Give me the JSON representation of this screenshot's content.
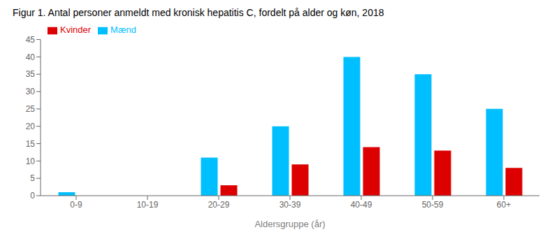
{
  "chart_data": {
    "type": "bar",
    "title": "Figur 1. Antal personer anmeldt med kronisk hepatitis C, fordelt på alder og køn, 2018",
    "categories": [
      "0-9",
      "10-19",
      "20-29",
      "30-39",
      "40-49",
      "50-59",
      "60+"
    ],
    "series": [
      {
        "name": "Mænd",
        "color": "#00BFFF",
        "values": [
          1,
          0,
          11,
          20,
          40,
          35,
          25
        ]
      },
      {
        "name": "Kvinder",
        "color": "#DD0000",
        "values": [
          0,
          0,
          3,
          9,
          14,
          13,
          8
        ]
      }
    ],
    "xlabel": "Aldersgruppe (år)",
    "ylim": [
      0,
      45
    ],
    "yticks": [
      0,
      5,
      10,
      15,
      20,
      25,
      30,
      35,
      40,
      45
    ],
    "grid": false,
    "legend": "upper left"
  }
}
